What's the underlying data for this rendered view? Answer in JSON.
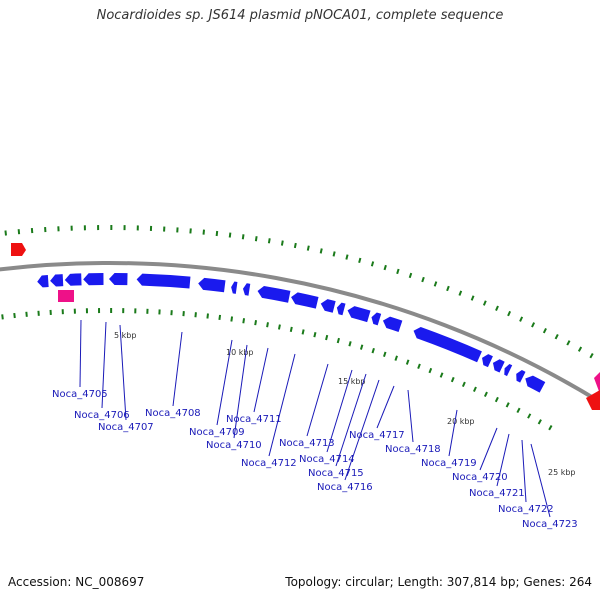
{
  "header": {
    "title": "Nocardioides sp. JS614 plasmid pNOCA01, complete sequence"
  },
  "footer": {
    "accession": "Accession: NC_008697",
    "summary": "Topology: circular; Length: 307,814 bp; Genes: 264"
  },
  "colors": {
    "backbone": "#8a8a8a",
    "gene": "#1a1aee",
    "label": "#1a1ab8",
    "tick": "#1a7a1a",
    "feature_red": "#ee1111",
    "feature_pink": "#ee1188"
  },
  "scale_labels": [
    "5 kbp",
    "10 kbp",
    "15 kbp",
    "20 kbp",
    "25 kbp"
  ],
  "genes": [
    "Noca_4705",
    "Noca_4706",
    "Noca_4707",
    "Noca_4708",
    "Noca_4709",
    "Noca_4710",
    "Noca_4711",
    "Noca_4712",
    "Noca_4713",
    "Noca_4714",
    "Noca_4715",
    "Noca_4716",
    "Noca_4717",
    "Noca_4718",
    "Noca_4719",
    "Noca_4720",
    "Noca_4721",
    "Noca_4722",
    "Noca_4723"
  ]
}
